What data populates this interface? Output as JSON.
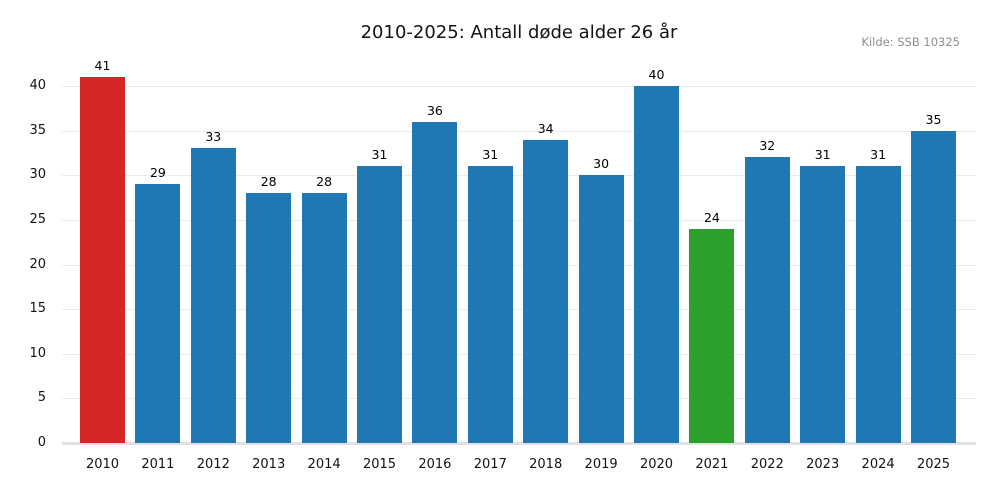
{
  "source": "Kilde: SSB 10325",
  "colors": {
    "default_bar": "#1f77b4",
    "highlight_first": "#d62728",
    "highlight_low": "#2ca02c",
    "grid": "#ececec",
    "baseline": "#e1e1e1",
    "title_text": "#131313",
    "source_text": "#8e8e8e",
    "value_label_text": "#000000",
    "background": "#ffffff"
  },
  "chart_data": {
    "type": "bar",
    "title": "2010-2025: Antall døde alder 26 år",
    "xlabel": "",
    "ylabel": "",
    "categories": [
      "2010",
      "2011",
      "2012",
      "2013",
      "2014",
      "2015",
      "2016",
      "2017",
      "2018",
      "2019",
      "2020",
      "2021",
      "2022",
      "2023",
      "2024",
      "2025"
    ],
    "values": [
      41,
      29,
      33,
      28,
      28,
      31,
      36,
      31,
      34,
      30,
      40,
      24,
      32,
      31,
      31,
      35
    ],
    "bar_colors": [
      "#d62728",
      "#1f77b4",
      "#1f77b4",
      "#1f77b4",
      "#1f77b4",
      "#1f77b4",
      "#1f77b4",
      "#1f77b4",
      "#1f77b4",
      "#1f77b4",
      "#1f77b4",
      "#2ca02c",
      "#1f77b4",
      "#1f77b4",
      "#1f77b4",
      "#1f77b4"
    ],
    "value_labels_shown": true,
    "yticks": [
      0,
      5,
      10,
      15,
      20,
      25,
      30,
      35,
      40
    ],
    "ylim": [
      0,
      42
    ],
    "grid": "horizontal",
    "legend": null,
    "annotation_source": "Kilde: SSB 10325"
  }
}
